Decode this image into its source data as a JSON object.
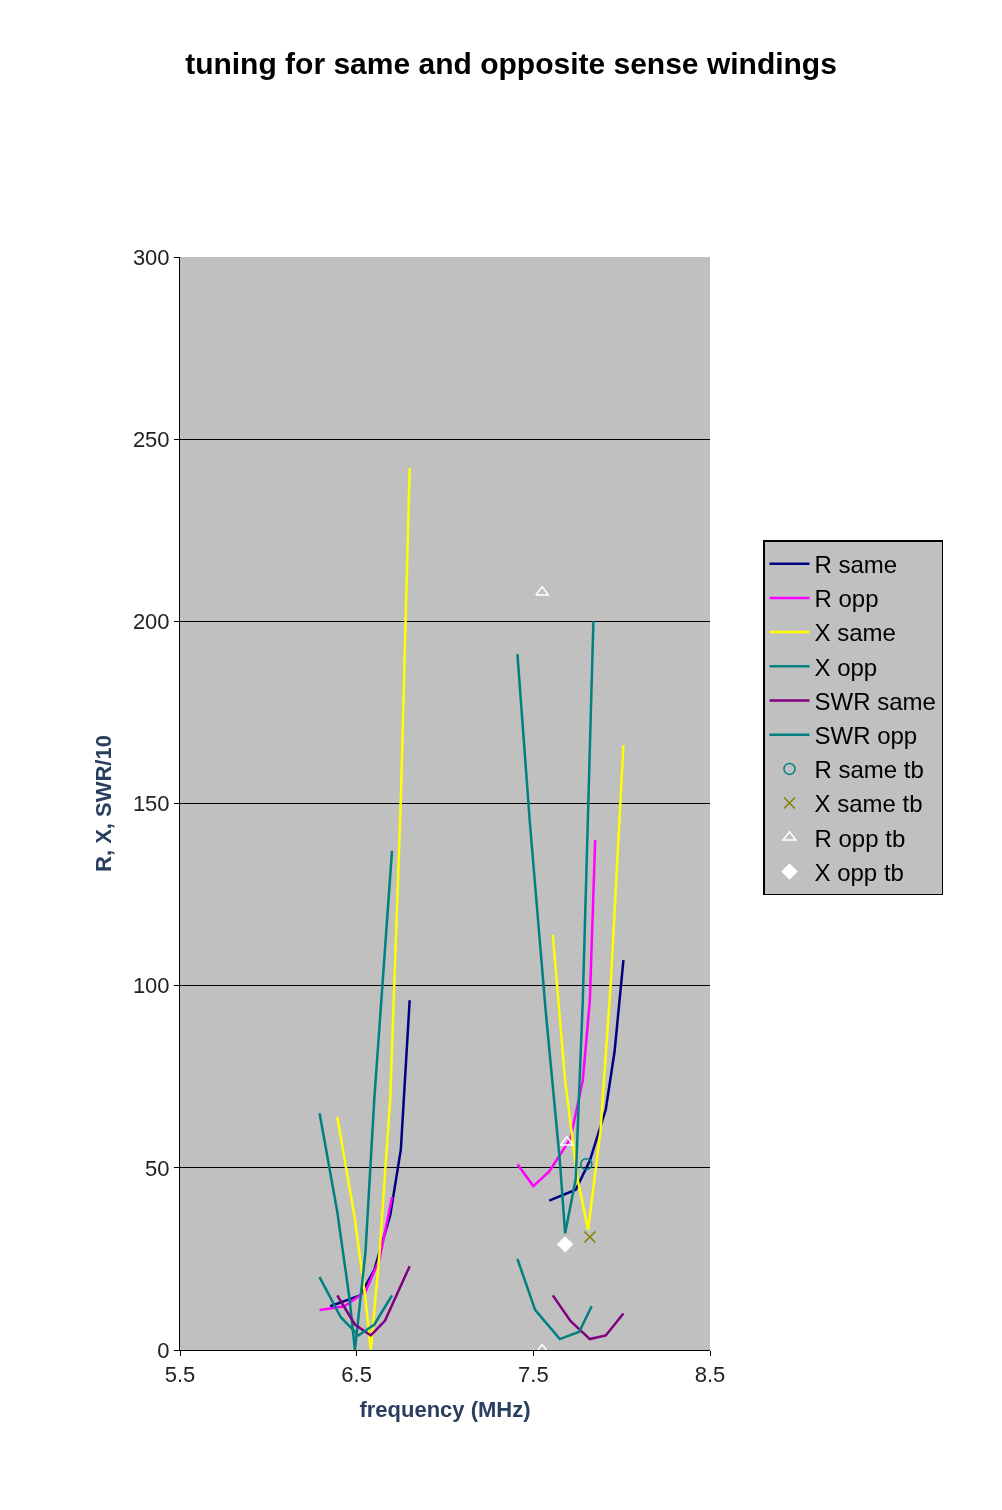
{
  "chart_data": {
    "type": "line",
    "title": "tuning for same and opposite sense windings",
    "xlabel": "frequency (MHz)",
    "ylabel": "R, X, SWR/10",
    "xlim": [
      5.5,
      8.5
    ],
    "xticks": [
      5.5,
      6.5,
      7.5,
      8.5
    ],
    "ylim": [
      0,
      300
    ],
    "yticks": [
      0,
      50,
      100,
      150,
      200,
      250,
      300
    ],
    "grid": "y",
    "legend": "right",
    "line_style": "solid",
    "series": [
      {
        "name": "R same",
        "color": "#000080",
        "marker": "none",
        "x": [
          6.35,
          6.52,
          6.6,
          6.69,
          6.75,
          6.8,
          null,
          7.59,
          7.74,
          7.82,
          7.91,
          7.96,
          8.01
        ],
        "values": [
          12,
          15,
          22,
          37,
          55,
          96,
          null,
          41,
          44,
          52,
          66,
          82,
          107
        ]
      },
      {
        "name": "R opp",
        "color": "#ff00ff",
        "marker": "none",
        "x": [
          6.29,
          6.43,
          6.55,
          6.63,
          6.7,
          null,
          7.41,
          7.5,
          7.59,
          7.71,
          7.78,
          7.82,
          7.85
        ],
        "values": [
          11,
          12,
          16,
          25,
          42,
          null,
          51,
          45,
          49,
          58,
          74,
          96,
          140
        ]
      },
      {
        "name": "X same",
        "color": "#ffff00",
        "marker": "none",
        "x": [
          6.39,
          6.49,
          6.55,
          6.58,
          6.63,
          6.69,
          6.75,
          6.8,
          null,
          7.61,
          7.68,
          7.75,
          7.81,
          7.88,
          7.94,
          8.01
        ],
        "values": [
          64,
          36,
          14,
          0,
          27,
          69,
          151,
          242,
          null,
          114,
          74,
          47,
          33,
          60,
          102,
          166
        ]
      },
      {
        "name": "X opp",
        "color": "#008080",
        "marker": "none",
        "x": [
          6.29,
          6.39,
          6.46,
          6.49,
          6.55,
          6.6,
          6.7,
          null,
          7.41,
          7.48,
          7.57,
          7.65,
          7.68,
          7.74,
          7.78,
          7.84
        ],
        "values": [
          65,
          38,
          14,
          0,
          27,
          69,
          137,
          null,
          191,
          145,
          93,
          52,
          32,
          47,
          96,
          200
        ]
      },
      {
        "name": "SWR same",
        "color": "#800080",
        "marker": "none",
        "x": [
          6.39,
          6.49,
          6.58,
          6.66,
          6.8,
          null,
          7.61,
          7.71,
          7.82,
          7.91,
          8.01
        ],
        "values": [
          15,
          7,
          4,
          8,
          23,
          null,
          15,
          8,
          3,
          4,
          10
        ]
      },
      {
        "name": "SWR opp",
        "color": "#008080",
        "marker": "none",
        "x": [
          6.29,
          6.41,
          6.51,
          6.6,
          6.7,
          null,
          7.41,
          7.51,
          7.65,
          7.76,
          7.83
        ],
        "values": [
          20,
          9,
          4,
          7,
          15,
          null,
          25,
          11,
          3,
          5,
          12
        ]
      },
      {
        "name": "R same tb",
        "type": "scatter",
        "color": "#008080",
        "marker": "circle",
        "x": [
          7.8
        ],
        "values": [
          51
        ]
      },
      {
        "name": "X same tb",
        "type": "scatter",
        "color": "#808000",
        "marker": "cross",
        "x": [
          7.82
        ],
        "values": [
          31
        ]
      },
      {
        "name": "R opp tb",
        "type": "scatter",
        "color": "#ffffff",
        "marker": "triangle",
        "x": [
          7.55,
          7.69,
          7.55
        ],
        "values": [
          208,
          57,
          0
        ]
      },
      {
        "name": "X opp tb",
        "type": "scatter",
        "color": "#ffffff",
        "marker": "diamond",
        "x": [
          7.68
        ],
        "values": [
          29
        ]
      }
    ]
  }
}
